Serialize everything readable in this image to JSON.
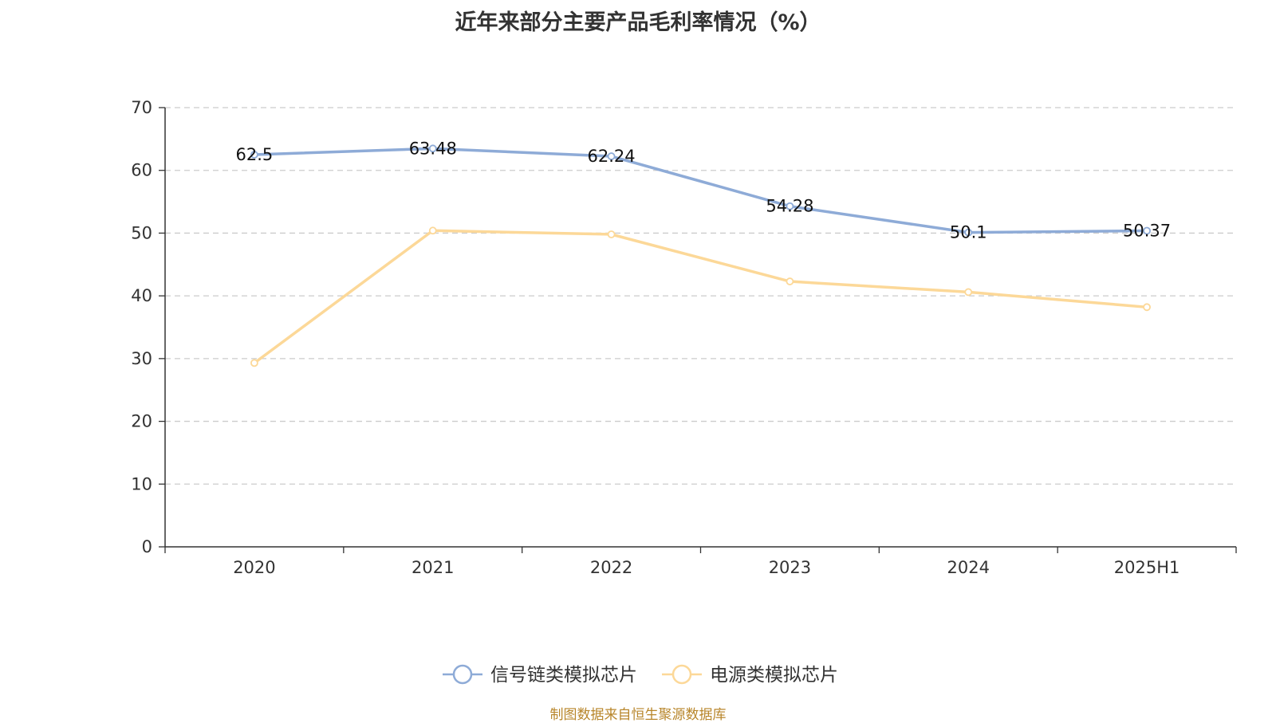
{
  "chart_data": {
    "type": "line",
    "title": "近年来部分主要产品毛利率情况（%）",
    "categories": [
      "2020",
      "2021",
      "2022",
      "2023",
      "2024",
      "2025H1"
    ],
    "ylim": [
      0,
      70
    ],
    "yticks": [
      "0",
      "10",
      "20",
      "30",
      "40",
      "50",
      "60",
      "70"
    ],
    "grid": true,
    "legend_position": "bottom",
    "series": [
      {
        "name": "信号链类模拟芯片",
        "color": "#8eabd7",
        "values": [
          62.5,
          63.48,
          62.24,
          54.28,
          50.1,
          50.37
        ],
        "labels": [
          "62.5",
          "63.48",
          "62.24",
          "54.28",
          "50.1",
          "50.37"
        ]
      },
      {
        "name": "电源类模拟芯片",
        "color": "#fcd898",
        "values": [
          29.3,
          50.4,
          49.8,
          42.3,
          40.6,
          38.2
        ]
      }
    ]
  },
  "source": "制图数据来自恒生聚源数据库"
}
